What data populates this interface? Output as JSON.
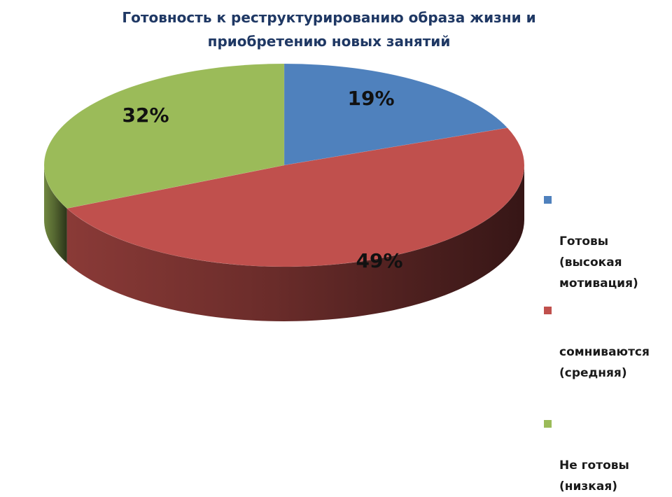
{
  "chart_data": {
    "type": "pie",
    "title_lines": [
      "Готовность к реструктурированию образа жизни и",
      "приобретению новых занятий"
    ],
    "categories": [
      "Готовы (высокая мотивация)",
      "сомниваются (средняя)",
      "Не готовы (низкая)"
    ],
    "legend_labels": [
      "Готовы\n(высокая\nмотивация)",
      "сомниваются\n(средняя)",
      "Не готовы\n(низкая)"
    ],
    "values": [
      19,
      49,
      32
    ],
    "data_labels": [
      "19%",
      "49%",
      "32%"
    ],
    "colors": [
      "#4f81bd",
      "#c0504d",
      "#9bbb59"
    ],
    "style": "3d-pie",
    "legend_position": "right"
  }
}
